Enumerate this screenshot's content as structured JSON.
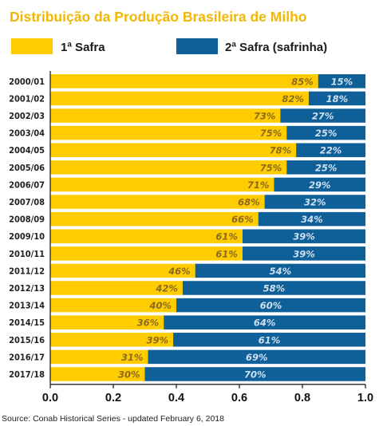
{
  "title": "Distribuição da Produção Brasileira de Milho",
  "source": "Source: Conab Historical Series - updated February 6, 2018",
  "colors": {
    "safra1": "#ffcc00",
    "safra2": "#0f5f98",
    "title": "#f2b705"
  },
  "chart_data": {
    "type": "bar",
    "orientation": "horizontal",
    "stacked": true,
    "title": "Distribuição da Produção Brasileira de Milho",
    "xlim": [
      0.0,
      1.0
    ],
    "ticks": [
      "0.0",
      "0.2",
      "0.4",
      "0.6",
      "0.8",
      "1.0"
    ],
    "legend_position": "top",
    "grid": false,
    "categories": [
      "2000/01",
      "2001/02",
      "2002/03",
      "2003/04",
      "2004/05",
      "2005/06",
      "2006/07",
      "2007/08",
      "2008/09",
      "2009/10",
      "2010/11",
      "2011/12",
      "2012/13",
      "2013/14",
      "2014/15",
      "2015/16",
      "2016/17",
      "2017/18"
    ],
    "series": [
      {
        "name": "1ª Safra",
        "color": "#ffcc00",
        "values": [
          0.85,
          0.82,
          0.73,
          0.75,
          0.78,
          0.75,
          0.71,
          0.68,
          0.66,
          0.61,
          0.61,
          0.46,
          0.42,
          0.4,
          0.36,
          0.39,
          0.31,
          0.3
        ],
        "labels": [
          "85%",
          "82%",
          "73%",
          "75%",
          "78%",
          "75%",
          "71%",
          "68%",
          "66%",
          "61%",
          "61%",
          "46%",
          "42%",
          "40%",
          "36%",
          "39%",
          "31%",
          "30%"
        ]
      },
      {
        "name": "2ª Safra (safrinha)",
        "color": "#0f5f98",
        "values": [
          0.15,
          0.18,
          0.27,
          0.25,
          0.22,
          0.25,
          0.29,
          0.32,
          0.34,
          0.39,
          0.39,
          0.54,
          0.58,
          0.6,
          0.64,
          0.61,
          0.69,
          0.7
        ],
        "labels": [
          "15%",
          "18%",
          "27%",
          "25%",
          "22%",
          "25%",
          "29%",
          "32%",
          "34%",
          "39%",
          "39%",
          "54%",
          "58%",
          "60%",
          "64%",
          "61%",
          "69%",
          "70%"
        ]
      }
    ]
  }
}
